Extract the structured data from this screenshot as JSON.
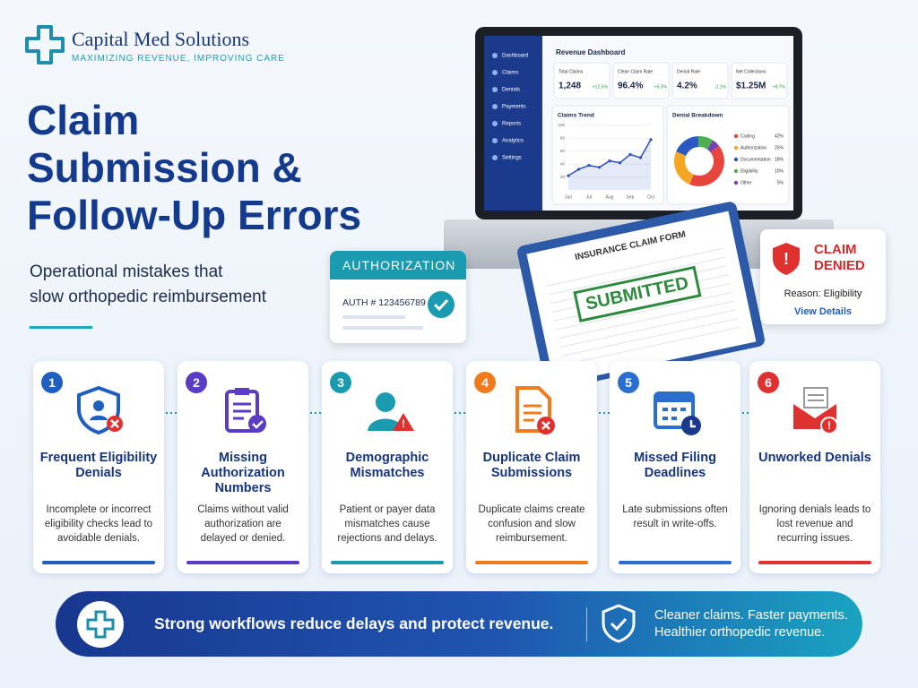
{
  "brand": {
    "name": "Capital Med Solutions",
    "tagline": "MAXIMIZING REVENUE, IMPROVING CARE"
  },
  "headline": {
    "title_lines": [
      "Claim",
      "Submission &",
      "Follow-Up Errors"
    ],
    "subtitle_lines": [
      "Operational mistakes that",
      "slow orthopedic reimbursement"
    ]
  },
  "dashboard": {
    "nav": [
      "Dashboard",
      "Claims",
      "Denials",
      "Payments",
      "Reports",
      "Analytics",
      "Settings"
    ],
    "title": "Revenue Dashboard",
    "kpis": [
      {
        "label": "Total Claims",
        "value": "1,248",
        "change": "+12.5%"
      },
      {
        "label": "Clean Claim Rate",
        "value": "96.4%",
        "change": "+5.3%"
      },
      {
        "label": "Denial Rate",
        "value": "4.2%",
        "change": "-2.1%"
      },
      {
        "label": "Net Collections",
        "value": "$1.25M",
        "change": "+8.7%"
      }
    ],
    "claims_trend": {
      "title": "Claims Trend",
      "categories": [
        "Jun",
        null,
        "Jul",
        null,
        "Aug",
        null,
        "Sep",
        null,
        "Oct"
      ],
      "values": [
        22,
        32,
        38,
        35,
        45,
        42,
        55,
        50,
        78
      ],
      "ylim": [
        0,
        100
      ],
      "yticks": [
        20,
        40,
        60,
        80,
        100
      ],
      "color": "#2b4fc7"
    },
    "denial_breakdown": {
      "title": "Denial Breakdown",
      "items": [
        {
          "label": "Coding",
          "value": 42,
          "value_label": "42%",
          "color": "#e8453c"
        },
        {
          "label": "Authorization",
          "value": 25,
          "value_label": "25%",
          "color": "#f5a623"
        },
        {
          "label": "Documentation",
          "value": 18,
          "value_label": "18%",
          "color": "#2b59c3"
        },
        {
          "label": "Eligibility",
          "value": 10,
          "value_label": "10%",
          "color": "#4caf50"
        },
        {
          "label": "Other",
          "value": 5,
          "value_label": "5%",
          "color": "#7b3fb5"
        }
      ]
    }
  },
  "authorization_card": {
    "title": "AUTHORIZATION",
    "number": "AUTH # 123456789"
  },
  "claim_form": {
    "title": "INSURANCE CLAIM FORM",
    "stamp": "SUBMITTED"
  },
  "denied_card": {
    "title_lines": [
      "CLAIM",
      "DENIED"
    ],
    "reason": "Reason: Eligibility",
    "link": "View Details"
  },
  "errors": [
    {
      "number": 1,
      "title": "Frequent Eligibility Denials",
      "description": "Incomplete or incorrect eligibility checks lead to avoidable denials.",
      "color": "#1f5fbf"
    },
    {
      "number": 2,
      "title": "Missing Authorization Numbers",
      "description": "Claims without valid authorization are delayed or denied.",
      "color": "#5b3cc4"
    },
    {
      "number": 3,
      "title": "Demographic Mismatches",
      "description": "Patient or payer data mismatches cause rejections and delays.",
      "color": "#1a9bb0"
    },
    {
      "number": 4,
      "title": "Duplicate Claim Submissions",
      "description": "Duplicate claims create confusion and slow reimbursement.",
      "color": "#f07a1e"
    },
    {
      "number": 5,
      "title": "Missed Filing Deadlines",
      "description": "Late submissions often result in write-offs.",
      "color": "#2a6fd0"
    },
    {
      "number": 6,
      "title": "Unworked Denials",
      "description": "Ignoring denials leads to lost revenue and recurring issues.",
      "color": "#e03131"
    }
  ],
  "footer": {
    "message": "Strong workflows reduce delays and protect revenue.",
    "tagline_lines": [
      "Cleaner claims. Faster payments.",
      "Healthier orthopedic revenue."
    ]
  }
}
